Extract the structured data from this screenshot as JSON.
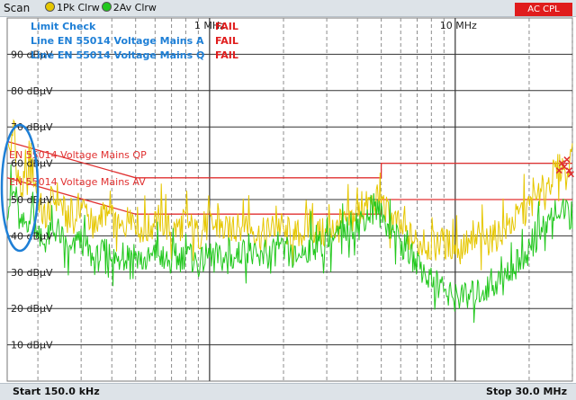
{
  "header": {
    "title": "Scan",
    "trace1_label": "1Pk Clrw",
    "trace2_label": "2Av Clrw",
    "ac_badge": "AC CPL"
  },
  "limit_check": {
    "heading": "Limit Check",
    "rows": [
      {
        "name": "Line EN 55014 Voltage Mains A",
        "result": "FAIL"
      },
      {
        "name": "Line EN 55014 Voltage Mains Q",
        "result": "FAIL"
      }
    ],
    "heading_result": "FAIL"
  },
  "limit_labels": {
    "qp": "EN 55014 Voltage Mains QP",
    "av": "EN 55014 Voltage Mains AV"
  },
  "footer": {
    "start": "Start 150.0 kHz",
    "stop": "Stop 30.0 MHz"
  },
  "colors": {
    "peak": "#e6c700",
    "average": "#22c81e",
    "limit": "#e03030",
    "highlight": "#1e7fd6",
    "grid": "#9aa0a6"
  },
  "chart_data": {
    "type": "line",
    "x_scale": "log",
    "x_unit": "MHz",
    "xlim": [
      0.15,
      30.0
    ],
    "x_tick_labels": [
      "1 MHz",
      "10 MHz"
    ],
    "ylim": [
      0,
      100
    ],
    "y_unit": "dBµV",
    "y_ticks": [
      {
        "value": 90,
        "label": "90 dBµV"
      },
      {
        "value": 80,
        "label": "80 dBµV"
      },
      {
        "value": 70,
        "label": "70 dBµV"
      },
      {
        "value": 60,
        "label": "60 dBµV"
      },
      {
        "value": 50,
        "label": "50 dBµV"
      },
      {
        "value": 40,
        "label": "40 dBµV"
      },
      {
        "value": 30,
        "label": "30 dBµV"
      },
      {
        "value": 20,
        "label": "20 dBµV"
      },
      {
        "value": 10,
        "label": "10 dBµV"
      }
    ],
    "limits": [
      {
        "name": "EN 55014 Voltage Mains QP",
        "points": [
          [
            0.15,
            66
          ],
          [
            0.5,
            56
          ],
          [
            5.0,
            56
          ],
          [
            5.0,
            60
          ],
          [
            30.0,
            60
          ]
        ]
      },
      {
        "name": "EN 55014 Voltage Mains AV",
        "points": [
          [
            0.15,
            56
          ],
          [
            0.5,
            46
          ],
          [
            5.0,
            46
          ],
          [
            5.0,
            50
          ],
          [
            30.0,
            50
          ]
        ]
      }
    ],
    "series": [
      {
        "name": "1Pk Clrw",
        "points": [
          [
            0.15,
            63
          ],
          [
            0.16,
            66
          ],
          [
            0.17,
            52
          ],
          [
            0.19,
            58
          ],
          [
            0.21,
            45
          ],
          [
            0.24,
            51
          ],
          [
            0.27,
            43
          ],
          [
            0.3,
            49
          ],
          [
            0.34,
            42
          ],
          [
            0.38,
            47
          ],
          [
            0.43,
            41
          ],
          [
            0.48,
            46
          ],
          [
            0.55,
            41
          ],
          [
            0.62,
            45
          ],
          [
            0.7,
            41
          ],
          [
            0.8,
            44
          ],
          [
            0.9,
            40
          ],
          [
            1.0,
            43
          ],
          [
            1.2,
            41
          ],
          [
            1.4,
            44
          ],
          [
            1.6,
            40
          ],
          [
            1.9,
            43
          ],
          [
            2.2,
            40
          ],
          [
            2.6,
            42
          ],
          [
            3.0,
            40
          ],
          [
            3.5,
            43
          ],
          [
            4.0,
            46
          ],
          [
            4.5,
            49
          ],
          [
            4.8,
            50
          ],
          [
            5.2,
            47
          ],
          [
            6.0,
            42
          ],
          [
            7.0,
            38
          ],
          [
            8.0,
            37
          ],
          [
            9.0,
            38
          ],
          [
            10.0,
            37
          ],
          [
            12.0,
            38
          ],
          [
            14.0,
            39
          ],
          [
            16.0,
            42
          ],
          [
            18.0,
            45
          ],
          [
            20.0,
            48
          ],
          [
            22.0,
            51
          ],
          [
            24.0,
            55
          ],
          [
            26.0,
            58
          ],
          [
            28.0,
            60
          ],
          [
            30.0,
            61
          ]
        ]
      },
      {
        "name": "2Av Clrw",
        "points": [
          [
            0.15,
            48
          ],
          [
            0.16,
            52
          ],
          [
            0.17,
            42
          ],
          [
            0.19,
            46
          ],
          [
            0.21,
            38
          ],
          [
            0.24,
            42
          ],
          [
            0.27,
            35
          ],
          [
            0.3,
            39
          ],
          [
            0.34,
            33
          ],
          [
            0.38,
            36
          ],
          [
            0.43,
            32
          ],
          [
            0.48,
            36
          ],
          [
            0.55,
            33
          ],
          [
            0.62,
            35
          ],
          [
            0.7,
            32
          ],
          [
            0.8,
            35
          ],
          [
            0.9,
            32
          ],
          [
            1.0,
            35
          ],
          [
            1.2,
            33
          ],
          [
            1.4,
            36
          ],
          [
            1.6,
            33
          ],
          [
            1.9,
            36
          ],
          [
            2.2,
            34
          ],
          [
            2.6,
            37
          ],
          [
            3.0,
            38
          ],
          [
            3.5,
            41
          ],
          [
            4.0,
            44
          ],
          [
            4.5,
            46
          ],
          [
            4.8,
            47
          ],
          [
            5.2,
            44
          ],
          [
            6.0,
            38
          ],
          [
            7.0,
            32
          ],
          [
            8.0,
            28
          ],
          [
            9.0,
            25
          ],
          [
            10.0,
            23
          ],
          [
            12.0,
            24
          ],
          [
            14.0,
            26
          ],
          [
            16.0,
            29
          ],
          [
            18.0,
            33
          ],
          [
            20.0,
            36
          ],
          [
            22.0,
            40
          ],
          [
            24.0,
            44
          ],
          [
            26.0,
            48
          ],
          [
            28.0,
            46
          ],
          [
            30.0,
            45
          ]
        ]
      }
    ]
  }
}
